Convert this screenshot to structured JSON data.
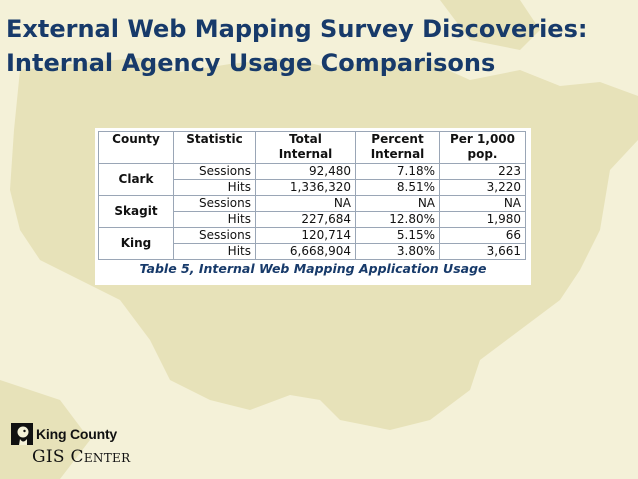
{
  "slide": {
    "title_line1": "External Web Mapping Survey Discoveries:",
    "title_line2": "Internal Agency Usage Comparisons",
    "colors": {
      "title": "#173a6a",
      "background": "#f4f1d8",
      "map_land": "#e7e2b9"
    }
  },
  "table": {
    "columns": [
      {
        "line1": "County",
        "line2": ""
      },
      {
        "line1": "Statistic",
        "line2": ""
      },
      {
        "line1": "Total",
        "line2": "Internal"
      },
      {
        "line1": "Percent",
        "line2": "Internal"
      },
      {
        "line1": "Per 1,000",
        "line2": "pop."
      }
    ],
    "groups": [
      {
        "county": "Clark",
        "rows": [
          {
            "statistic": "Sessions",
            "total_internal": "92,480",
            "percent_internal": "7.18%",
            "per_1000": "223"
          },
          {
            "statistic": "Hits",
            "total_internal": "1,336,320",
            "percent_internal": "8.51%",
            "per_1000": "3,220"
          }
        ]
      },
      {
        "county": "Skagit",
        "rows": [
          {
            "statistic": "Sessions",
            "total_internal": "NA",
            "percent_internal": "NA",
            "per_1000": "NA"
          },
          {
            "statistic": "Hits",
            "total_internal": "227,684",
            "percent_internal": "12.80%",
            "per_1000": "1,980"
          }
        ]
      },
      {
        "county": "King",
        "rows": [
          {
            "statistic": "Sessions",
            "total_internal": "120,714",
            "percent_internal": "5.15%",
            "per_1000": "66"
          },
          {
            "statistic": "Hits",
            "total_internal": "6,668,904",
            "percent_internal": "3.80%",
            "per_1000": "3,661"
          }
        ]
      }
    ],
    "caption": "Table 5, Internal Web Mapping Application Usage"
  },
  "logo": {
    "line1": "King County",
    "line2_first": "GIS ",
    "line2_second": "Center"
  }
}
